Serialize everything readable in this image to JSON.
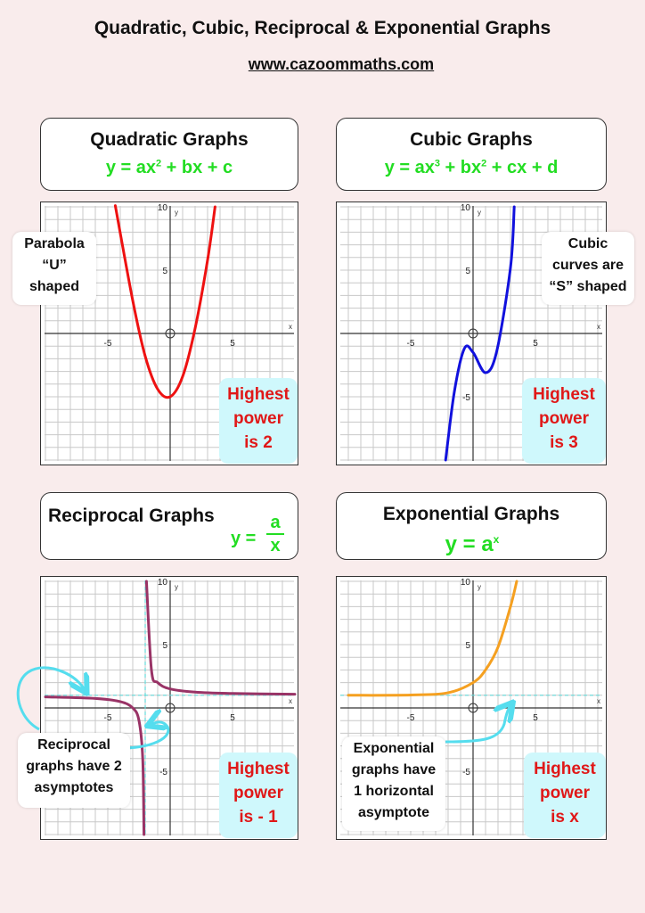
{
  "page": {
    "title": "Quadratic, Cubic, Reciprocal & Exponential Graphs",
    "website": "www.cazoommaths.com"
  },
  "panels": {
    "quadratic": {
      "heading": "Quadratic Graphs",
      "formula_parts": [
        "y = ax",
        "2",
        " + bx + c"
      ],
      "note_lines": [
        "Parabola",
        "“U”",
        "shaped"
      ],
      "power_lines": [
        "Highest",
        "power",
        "is 2"
      ],
      "curve_color": "#ee1111"
    },
    "cubic": {
      "heading": "Cubic Graphs",
      "formula_parts": [
        "y = ax",
        "3",
        " + bx",
        "2",
        " + cx + d"
      ],
      "note_lines": [
        "Cubic",
        "curves are",
        "“S” shaped"
      ],
      "power_lines": [
        "Highest",
        "power",
        "is 3"
      ],
      "curve_color": "#1111dd"
    },
    "reciprocal": {
      "heading": "Reciprocal Graphs",
      "formula_prefix": "y =",
      "formula_num": "a",
      "formula_den": "x",
      "note_lines": [
        "Reciprocal",
        "graphs have 2",
        "asymptotes"
      ],
      "power_lines": [
        "Highest",
        "power",
        "is - 1"
      ],
      "curve_color": "#993366"
    },
    "exponential": {
      "heading": "Exponential Graphs",
      "formula_base": "y = a",
      "formula_exp": "x",
      "note_lines": [
        "Exponential",
        "graphs have",
        "1 horizontal",
        "asymptote"
      ],
      "power_lines": [
        "Highest",
        "power",
        "is x"
      ],
      "curve_color": "#f5a020"
    }
  },
  "axis_labels": {
    "x": "x",
    "y": "y",
    "ticks": [
      "-5",
      "5",
      "10",
      "5",
      "-5"
    ]
  },
  "chart_data": [
    {
      "type": "line",
      "title": "Quadratic Graphs",
      "xlim": [
        -10,
        10
      ],
      "ylim": [
        -10,
        10
      ],
      "xticks": [
        -5,
        5
      ],
      "yticks": [
        5,
        10
      ],
      "series": [
        {
          "x": [
            -4.4,
            -3,
            -2,
            -1,
            0,
            1,
            2,
            3,
            3.6
          ],
          "y": [
            10.1,
            2.6,
            -1.8,
            -4.4,
            -5,
            -3.4,
            0.4,
            5.8,
            10
          ]
        }
      ]
    },
    {
      "type": "line",
      "title": "Cubic Graphs",
      "xlim": [
        -10,
        10
      ],
      "ylim": [
        -10,
        10
      ],
      "xticks": [
        -5,
        5
      ],
      "yticks": [
        5,
        10,
        -5
      ],
      "series": [
        {
          "x": [
            -2.2,
            -1.5,
            -0.7,
            0,
            1,
            1.9,
            3,
            3.3
          ],
          "y": [
            -10,
            -4.6,
            -1.2,
            -1.5,
            -3.1,
            -1.4,
            5.2,
            10
          ]
        }
      ]
    },
    {
      "type": "line",
      "title": "Reciprocal Graphs",
      "xlim": [
        -10,
        10
      ],
      "ylim": [
        -10,
        10
      ],
      "xticks": [
        -5,
        5
      ],
      "yticks": [
        5,
        10,
        -5
      ],
      "asymptotes": {
        "x": -2,
        "y": 1
      },
      "series": [
        {
          "x": [
            -1.9,
            -1.5,
            -1,
            0,
            2,
            5,
            10
          ],
          "y": [
            10,
            3,
            2,
            1.5,
            1.25,
            1.14,
            1.08
          ]
        },
        {
          "x": [
            -10,
            -6,
            -4,
            -3,
            -2.5,
            -2.2,
            -2.1
          ],
          "y": [
            0.875,
            0.75,
            0.5,
            0,
            -1,
            -4,
            -10
          ]
        }
      ]
    },
    {
      "type": "line",
      "title": "Exponential Graphs",
      "xlim": [
        -10,
        10
      ],
      "ylim": [
        -10,
        10
      ],
      "xticks": [
        -5,
        5
      ],
      "yticks": [
        5,
        10,
        -5
      ],
      "asymptotes": {
        "y": 1
      },
      "series": [
        {
          "x": [
            -10,
            -5,
            -2,
            0,
            1,
            2,
            3,
            3.5
          ],
          "y": [
            1,
            1.02,
            1.2,
            2,
            3,
            4.8,
            8,
            10
          ]
        }
      ]
    }
  ]
}
